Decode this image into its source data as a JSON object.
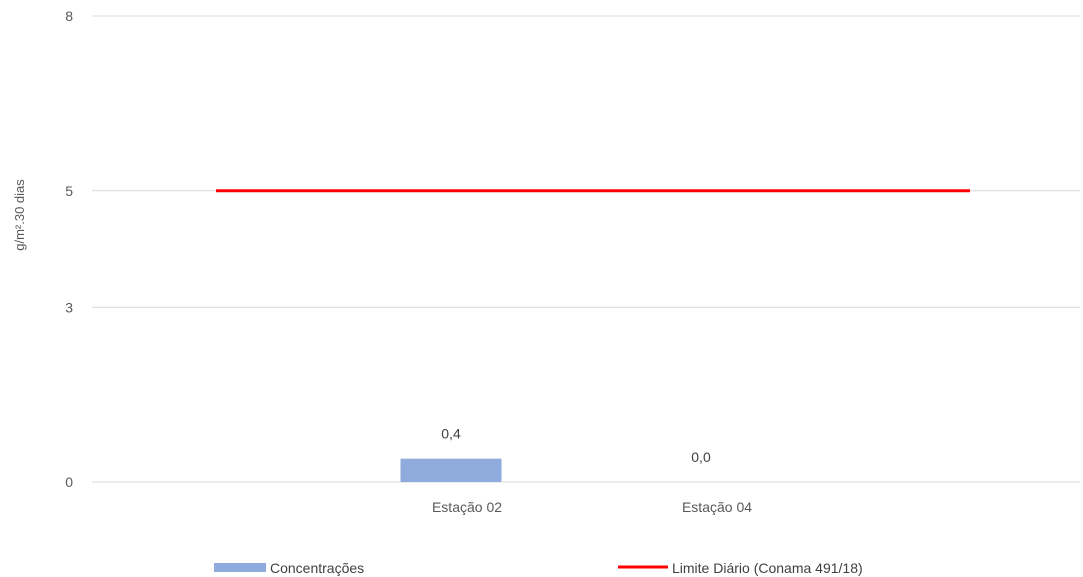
{
  "chart_data": {
    "type": "bar",
    "title": "",
    "xlabel": "",
    "ylabel": "g/m².30 dias",
    "categories": [
      "Estação 02",
      "Estação 04"
    ],
    "y_ticks": [
      0,
      3,
      5,
      8
    ],
    "ylim": [
      0,
      8
    ],
    "grid": true,
    "legend_position": "bottom",
    "series": [
      {
        "name": "Concentrações",
        "kind": "bar",
        "values": [
          0.4,
          0.0
        ],
        "data_labels": [
          "0,4",
          "0,0"
        ],
        "color": "#8FAADC"
      },
      {
        "name": "Limite Diário (Conama 491/18)",
        "kind": "line",
        "value": 5,
        "color": "#FF0000"
      }
    ]
  },
  "colors": {
    "grid": "#D9D9D9",
    "text": "#595959"
  }
}
